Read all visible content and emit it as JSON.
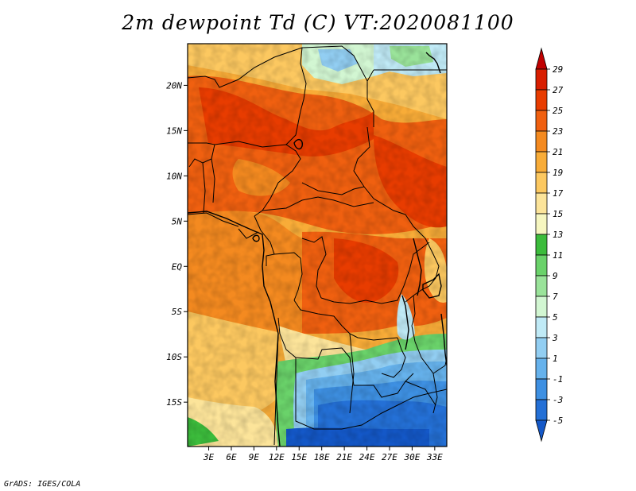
{
  "title": "2m dewpoint Td (C) VT:2020081100",
  "credit": "GrADS: IGES/COLA",
  "map": {
    "lat_ticks": [
      {
        "lat": 20,
        "label": "20N"
      },
      {
        "lat": 15,
        "label": "15N"
      },
      {
        "lat": 10,
        "label": "10N"
      },
      {
        "lat": 5,
        "label": "5N"
      },
      {
        "lat": 0,
        "label": "EQ"
      },
      {
        "lat": -5,
        "label": "5S"
      },
      {
        "lat": -10,
        "label": "10S"
      },
      {
        "lat": -15,
        "label": "15S"
      }
    ],
    "lon_ticks": [
      {
        "lon": 3,
        "label": "3E"
      },
      {
        "lon": 6,
        "label": "6E"
      },
      {
        "lon": 9,
        "label": "9E"
      },
      {
        "lon": 12,
        "label": "12E"
      },
      {
        "lon": 15,
        "label": "15E"
      },
      {
        "lon": 18,
        "label": "18E"
      },
      {
        "lon": 21,
        "label": "21E"
      },
      {
        "lon": 24,
        "label": "24E"
      },
      {
        "lon": 27,
        "label": "27E"
      },
      {
        "lon": 30,
        "label": "30E"
      },
      {
        "lon": 33,
        "label": "33E"
      }
    ],
    "lon_range": [
      0.2,
      34.6
    ],
    "lat_range": [
      -19.9,
      24.6
    ]
  },
  "colorbar": {
    "labels": [
      "29",
      "27",
      "25",
      "23",
      "21",
      "19",
      "17",
      "15",
      "13",
      "11",
      "9",
      "7",
      "5",
      "3",
      "1",
      "-1",
      "-3",
      "-5"
    ],
    "colors": [
      "#c00000",
      "#d81e00",
      "#e83c00",
      "#f06010",
      "#f48a20",
      "#f8ac38",
      "#fcc860",
      "#fce49a",
      "#f6f6c0",
      "#3cbc3c",
      "#6ad26a",
      "#9ae39a",
      "#d2f6d2",
      "#c0eaf6",
      "#92cef2",
      "#66b2ec",
      "#3e90e2",
      "#2470d6",
      "#1458c8"
    ]
  }
}
